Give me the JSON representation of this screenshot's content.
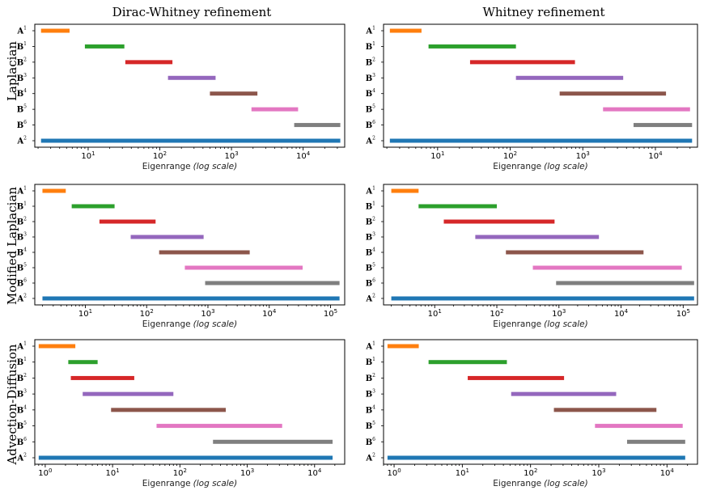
{
  "figure": {
    "column_titles": [
      "Dirac-Whitney refinement",
      "Whitney refinement"
    ],
    "row_titles": [
      "Laplacian",
      "Modified Laplacian",
      "Advection-Diffusion"
    ],
    "colors": {
      "A1": "#ff7f0e",
      "B1": "#2ca02c",
      "B2": "#d62728",
      "B3": "#9467bd",
      "B4": "#8c564b",
      "B5": "#e377c2",
      "B6": "#7f7f7f",
      "A2": "#1f77b4"
    }
  },
  "chart_data": [
    {
      "type": "bar",
      "orientation": "horizontal-range",
      "row": "Laplacian",
      "column": "Dirac-Whitney refinement",
      "xlabel": "Eigenrange",
      "xlabel_note": "(log scale)",
      "xscale": "log",
      "xlim": [
        1.8,
        38000
      ],
      "xticks": [
        10,
        100,
        1000,
        10000
      ],
      "series": [
        {
          "name": "A",
          "sup": "1",
          "color_key": "A1",
          "range": [
            2.2,
            5.5
          ]
        },
        {
          "name": "B",
          "sup": "1",
          "color_key": "B1",
          "range": [
            9,
            32
          ]
        },
        {
          "name": "B",
          "sup": "2",
          "color_key": "B2",
          "range": [
            33,
            150
          ]
        },
        {
          "name": "B",
          "sup": "3",
          "color_key": "B3",
          "range": [
            130,
            600
          ]
        },
        {
          "name": "B",
          "sup": "4",
          "color_key": "B4",
          "range": [
            500,
            2300
          ]
        },
        {
          "name": "B",
          "sup": "5",
          "color_key": "B5",
          "range": [
            1900,
            8500
          ]
        },
        {
          "name": "B",
          "sup": "6",
          "color_key": "B6",
          "range": [
            7500,
            33000
          ]
        },
        {
          "name": "A",
          "sup": "2",
          "color_key": "A2",
          "range": [
            2.2,
            33000
          ]
        }
      ]
    },
    {
      "type": "bar",
      "orientation": "horizontal-range",
      "row": "Laplacian",
      "column": "Whitney refinement",
      "xlabel": "Eigenrange",
      "xlabel_note": "(log scale)",
      "xscale": "log",
      "xlim": [
        1.8,
        38000
      ],
      "xticks": [
        10,
        100,
        1000,
        10000
      ],
      "series": [
        {
          "name": "A",
          "sup": "1",
          "color_key": "A1",
          "range": [
            2.2,
            6
          ]
        },
        {
          "name": "B",
          "sup": "1",
          "color_key": "B1",
          "range": [
            7.5,
            120
          ]
        },
        {
          "name": "B",
          "sup": "2",
          "color_key": "B2",
          "range": [
            28,
            780
          ]
        },
        {
          "name": "B",
          "sup": "3",
          "color_key": "B3",
          "range": [
            120,
            3600
          ]
        },
        {
          "name": "B",
          "sup": "4",
          "color_key": "B4",
          "range": [
            480,
            14000
          ]
        },
        {
          "name": "B",
          "sup": "5",
          "color_key": "B5",
          "range": [
            1900,
            30000
          ]
        },
        {
          "name": "B",
          "sup": "6",
          "color_key": "B6",
          "range": [
            5000,
            32000
          ]
        },
        {
          "name": "A",
          "sup": "2",
          "color_key": "A2",
          "range": [
            2.2,
            32000
          ]
        }
      ]
    },
    {
      "type": "bar",
      "orientation": "horizontal-range",
      "row": "Modified Laplacian",
      "column": "Dirac-Whitney refinement",
      "xlabel": "Eigenrange",
      "xlabel_note": "(log scale)",
      "xscale": "log",
      "xlim": [
        1.5,
        170000
      ],
      "xticks": [
        10,
        100,
        1000,
        10000,
        100000
      ],
      "series": [
        {
          "name": "A",
          "sup": "1",
          "color_key": "A1",
          "range": [
            2,
            4.8
          ]
        },
        {
          "name": "B",
          "sup": "1",
          "color_key": "B1",
          "range": [
            6,
            30
          ]
        },
        {
          "name": "B",
          "sup": "2",
          "color_key": "B2",
          "range": [
            17,
            140
          ]
        },
        {
          "name": "B",
          "sup": "3",
          "color_key": "B3",
          "range": [
            55,
            850
          ]
        },
        {
          "name": "B",
          "sup": "4",
          "color_key": "B4",
          "range": [
            160,
            4800
          ]
        },
        {
          "name": "B",
          "sup": "5",
          "color_key": "B5",
          "range": [
            420,
            35000
          ]
        },
        {
          "name": "B",
          "sup": "6",
          "color_key": "B6",
          "range": [
            900,
            140000
          ]
        },
        {
          "name": "A",
          "sup": "2",
          "color_key": "A2",
          "range": [
            2,
            140000
          ]
        }
      ]
    },
    {
      "type": "bar",
      "orientation": "horizontal-range",
      "row": "Modified Laplacian",
      "column": "Whitney refinement",
      "xlabel": "Eigenrange",
      "xlabel_note": "(log scale)",
      "xscale": "log",
      "xlim": [
        1.5,
        170000
      ],
      "xticks": [
        10,
        100,
        1000,
        10000,
        100000
      ],
      "series": [
        {
          "name": "A",
          "sup": "1",
          "color_key": "A1",
          "range": [
            2,
            5.5
          ]
        },
        {
          "name": "B",
          "sup": "1",
          "color_key": "B1",
          "range": [
            5.5,
            100
          ]
        },
        {
          "name": "B",
          "sup": "2",
          "color_key": "B2",
          "range": [
            14,
            850
          ]
        },
        {
          "name": "B",
          "sup": "3",
          "color_key": "B3",
          "range": [
            45,
            4400
          ]
        },
        {
          "name": "B",
          "sup": "4",
          "color_key": "B4",
          "range": [
            140,
            23000
          ]
        },
        {
          "name": "B",
          "sup": "5",
          "color_key": "B5",
          "range": [
            380,
            95000
          ]
        },
        {
          "name": "B",
          "sup": "6",
          "color_key": "B6",
          "range": [
            900,
            150000
          ]
        },
        {
          "name": "A",
          "sup": "2",
          "color_key": "A2",
          "range": [
            2,
            150000
          ]
        }
      ]
    },
    {
      "type": "bar",
      "orientation": "horizontal-range",
      "row": "Advection-Diffusion",
      "column": "Dirac-Whitney refinement",
      "xlabel": "Eigenrange",
      "xlabel_note": "(log scale)",
      "xscale": "log",
      "xlim": [
        0.7,
        28000
      ],
      "xticks": [
        1,
        10,
        100,
        1000,
        10000
      ],
      "series": [
        {
          "name": "A",
          "sup": "1",
          "color_key": "A1",
          "range": [
            0.8,
            2.8
          ]
        },
        {
          "name": "B",
          "sup": "1",
          "color_key": "B1",
          "range": [
            2.2,
            6
          ]
        },
        {
          "name": "B",
          "sup": "2",
          "color_key": "B2",
          "range": [
            2.4,
            21
          ]
        },
        {
          "name": "B",
          "sup": "3",
          "color_key": "B3",
          "range": [
            3.6,
            80
          ]
        },
        {
          "name": "B",
          "sup": "4",
          "color_key": "B4",
          "range": [
            9.5,
            480
          ]
        },
        {
          "name": "B",
          "sup": "5",
          "color_key": "B5",
          "range": [
            45,
            3300
          ]
        },
        {
          "name": "B",
          "sup": "6",
          "color_key": "B6",
          "range": [
            310,
            18500
          ]
        },
        {
          "name": "A",
          "sup": "2",
          "color_key": "A2",
          "range": [
            0.8,
            18500
          ]
        }
      ]
    },
    {
      "type": "bar",
      "orientation": "horizontal-range",
      "row": "Advection-Diffusion",
      "column": "Whitney refinement",
      "xlabel": "Eigenrange",
      "xlabel_note": "(log scale)",
      "xscale": "log",
      "xlim": [
        0.7,
        28000
      ],
      "xticks": [
        1,
        10,
        100,
        1000,
        10000
      ],
      "series": [
        {
          "name": "A",
          "sup": "1",
          "color_key": "A1",
          "range": [
            0.8,
            2.3
          ]
        },
        {
          "name": "B",
          "sup": "1",
          "color_key": "B1",
          "range": [
            3.2,
            45
          ]
        },
        {
          "name": "B",
          "sup": "2",
          "color_key": "B2",
          "range": [
            12,
            310
          ]
        },
        {
          "name": "B",
          "sup": "3",
          "color_key": "B3",
          "range": [
            52,
            1800
          ]
        },
        {
          "name": "B",
          "sup": "4",
          "color_key": "B4",
          "range": [
            220,
            7000
          ]
        },
        {
          "name": "B",
          "sup": "5",
          "color_key": "B5",
          "range": [
            880,
            17000
          ]
        },
        {
          "name": "B",
          "sup": "6",
          "color_key": "B6",
          "range": [
            2600,
            18500
          ]
        },
        {
          "name": "A",
          "sup": "2",
          "color_key": "A2",
          "range": [
            0.8,
            18500
          ]
        }
      ]
    }
  ]
}
